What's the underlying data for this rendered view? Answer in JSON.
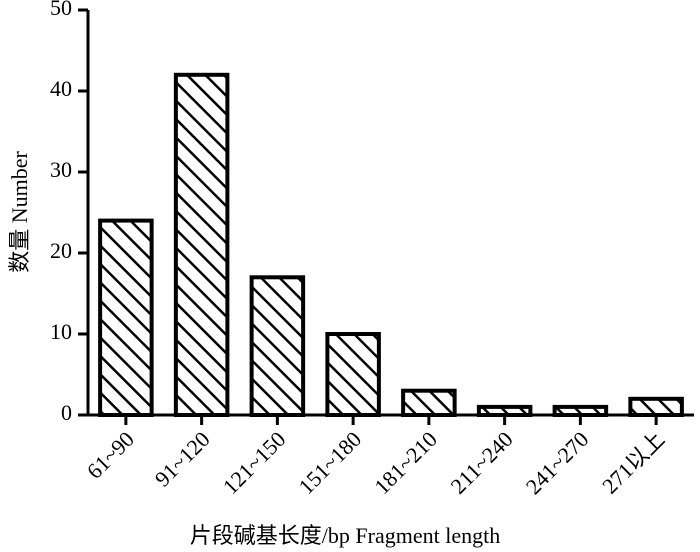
{
  "chart_data": {
    "type": "bar",
    "x_label": "片段碱基长度/bp Fragment length",
    "y_label": "数量 Number",
    "categories": [
      "61~90",
      "91~120",
      "121~150",
      "151~180",
      "181~210",
      "211~240",
      "241~270",
      "271以上"
    ],
    "values": [
      24,
      42,
      17,
      10,
      3,
      1,
      1,
      2
    ],
    "color": "#000000",
    "ylim": [
      0,
      50
    ],
    "yticks": [
      0,
      10,
      20,
      30,
      40,
      50
    ],
    "grid": false
  }
}
